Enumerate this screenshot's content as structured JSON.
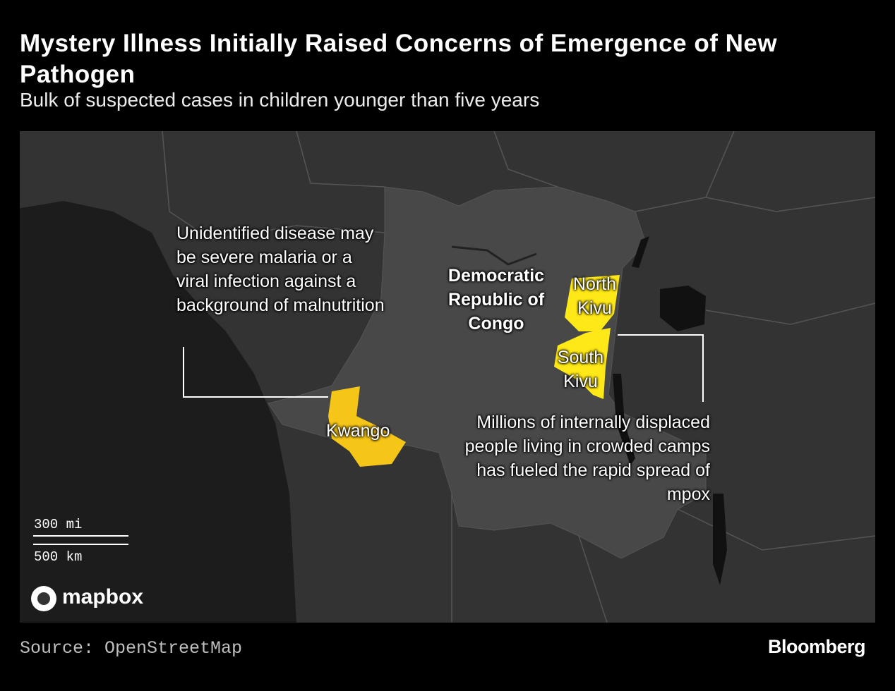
{
  "header": {
    "title": "Mystery Illness Initially Raised Concerns of Emergence of New Pathogen",
    "subtitle": "Bulk of suspected cases in children younger than five years"
  },
  "map": {
    "country_label": "Democratic Republic of Congo",
    "regions": [
      {
        "label": "North Kivu"
      },
      {
        "label": "South Kivu"
      },
      {
        "label": "Kwango"
      }
    ],
    "annotations": [
      "Unidentified disease may be severe malaria or a viral infection against a background of malnutrition",
      "Millions of internally displaced people living in crowded camps has fueled the rapid spread of mpox"
    ],
    "scale": [
      "300 mi",
      "500 km"
    ],
    "attribution": "mapbox"
  },
  "footer": {
    "source": "Source: OpenStreetMap",
    "brand": "Bloomberg"
  }
}
